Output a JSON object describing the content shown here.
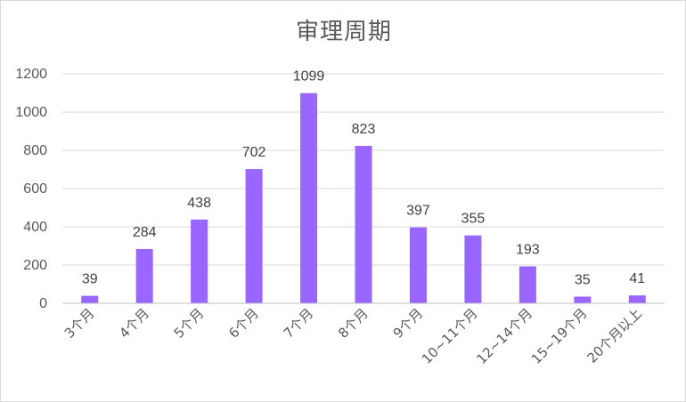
{
  "chart_data": {
    "type": "bar",
    "title": "审理周期",
    "xlabel": "",
    "ylabel": "",
    "categories": [
      "3个月",
      "4个月",
      "5个月",
      "6个月",
      "7个月",
      "8个月",
      "9个月",
      "10~11个月",
      "12~14个月",
      "15~19个月",
      "20个月以上"
    ],
    "values": [
      39,
      284,
      438,
      702,
      1099,
      823,
      397,
      355,
      193,
      35,
      41
    ],
    "ylim": [
      0,
      1200
    ],
    "yticks": [
      0,
      200,
      400,
      600,
      800,
      1000,
      1200
    ],
    "grid": true,
    "legend": "none",
    "bar_color": "#9966ff",
    "grid_color": "#d9d9d9"
  }
}
